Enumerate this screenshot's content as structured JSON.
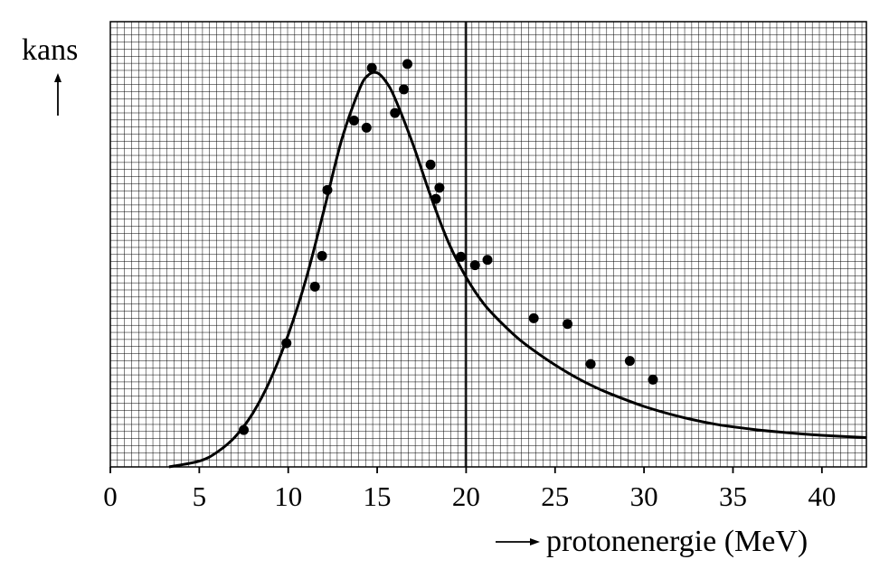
{
  "chart_data": {
    "type": "scatter",
    "title": "",
    "xlabel": "protonenergie (MeV)",
    "ylabel": "kans",
    "xlim": [
      0,
      42.5
    ],
    "ylim": [
      0,
      100
    ],
    "x_ticks": [
      "0",
      "5",
      "10",
      "15",
      "20",
      "25",
      "30",
      "35",
      "40"
    ],
    "x_tick_values": [
      0,
      5,
      10,
      15,
      20,
      25,
      30,
      35,
      40
    ],
    "grid": true,
    "y_tick_labels": false,
    "reference_line_x": 20,
    "series": [
      {
        "kind": "points",
        "x": [
          7.5,
          9.9,
          11.5,
          11.9,
          12.2,
          13.7,
          14.4,
          14.7,
          16.0,
          16.5,
          16.7,
          18.0,
          18.3,
          18.5,
          19.7,
          20.5,
          21.2,
          23.8,
          25.7,
          27.0,
          29.2,
          30.5
        ],
        "y": [
          8.3,
          27.8,
          40.5,
          47.4,
          62.2,
          77.8,
          76.2,
          89.6,
          79.5,
          84.8,
          90.5,
          67.9,
          60.2,
          62.7,
          47.2,
          45.3,
          46.5,
          33.4,
          32.1,
          23.1,
          23.8,
          19.6
        ]
      },
      {
        "kind": "curve",
        "x": [
          3.3,
          5,
          6,
          7,
          8,
          9,
          10,
          11,
          12,
          13,
          14,
          14.5,
          15,
          15.5,
          16,
          17,
          18,
          19,
          20,
          21,
          22,
          23,
          24,
          25,
          26,
          27,
          28,
          30,
          32,
          34,
          36,
          38,
          40,
          42.5
        ],
        "y": [
          0,
          1.3,
          3.3,
          6.7,
          12.0,
          19.6,
          29.7,
          42.2,
          57.5,
          73.4,
          84.8,
          88.0,
          88.5,
          86.5,
          82.8,
          72.6,
          60.9,
          50.5,
          42.6,
          36.6,
          32.3,
          28.6,
          25.6,
          22.9,
          20.5,
          18.4,
          16.6,
          13.6,
          11.3,
          9.6,
          8.5,
          7.7,
          7.1,
          6.6
        ]
      }
    ]
  }
}
